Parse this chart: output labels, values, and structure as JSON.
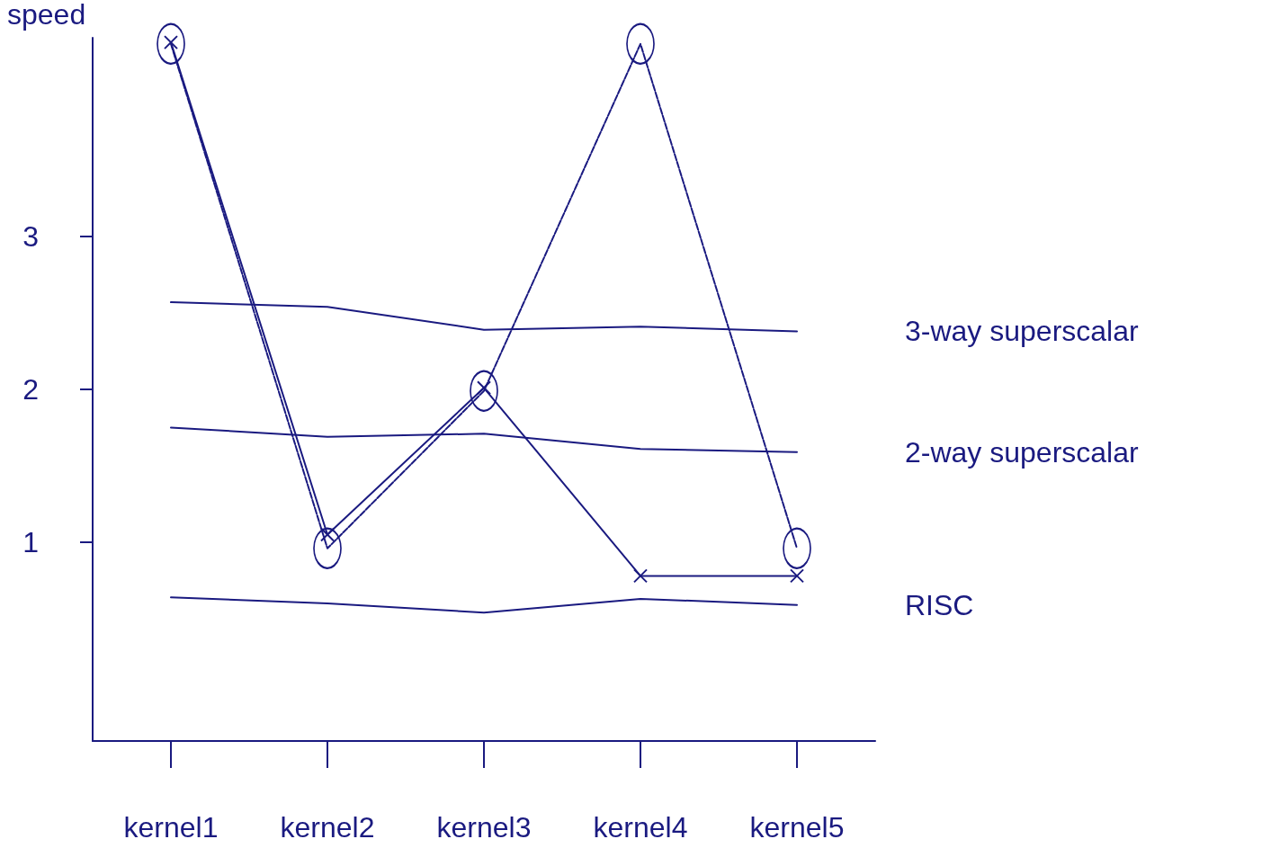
{
  "chart_data": {
    "type": "line",
    "ylabel": "speed",
    "categories": [
      "kernel1",
      "kernel2",
      "kernel3",
      "kernel4",
      "kernel5"
    ],
    "ylim": [
      -0.3,
      4.3
    ],
    "yticks": [
      1,
      2,
      3
    ],
    "grid": false,
    "legend": false,
    "series": [
      {
        "color": "#1a1a80",
        "marker": "cross",
        "line_style": "solid",
        "values": [
          4.27,
          1.05,
          2.01,
          0.78,
          0.78
        ]
      },
      {
        "color": "#1a1a80",
        "marker": "circle",
        "line_style": "dashed",
        "values": [
          4.26,
          0.96,
          1.99,
          4.26,
          0.96
        ]
      },
      {
        "name": "3-way superscalar",
        "color": "#1a1a80",
        "marker": "none",
        "line_style": "solid",
        "values": [
          2.57,
          2.54,
          2.39,
          2.41,
          2.38
        ]
      },
      {
        "name": "2-way superscalar",
        "color": "#1a1a80",
        "marker": "none",
        "line_style": "solid",
        "values": [
          1.75,
          1.69,
          1.71,
          1.61,
          1.59
        ]
      },
      {
        "name": "RISC",
        "color": "#1a1a80",
        "marker": "none",
        "line_style": "solid",
        "values": [
          0.64,
          0.6,
          0.54,
          0.63,
          0.59
        ]
      }
    ]
  }
}
